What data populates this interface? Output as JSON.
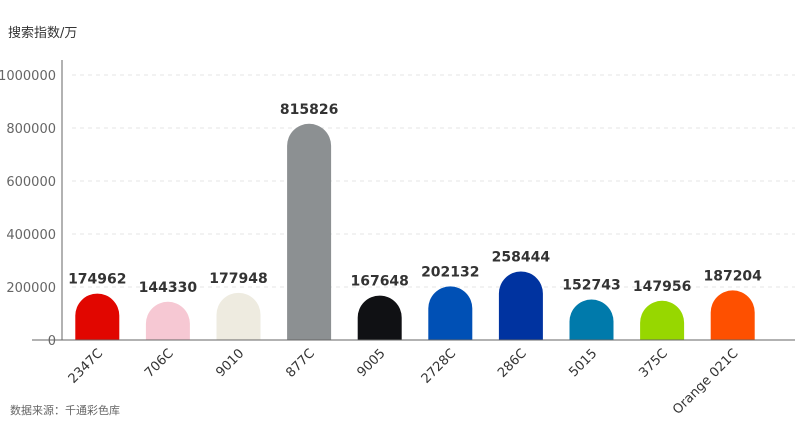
{
  "chart_data": {
    "type": "bar",
    "title": "",
    "ylabel": "搜索指数/万",
    "xlabel": "",
    "ylim": [
      0,
      1000000
    ],
    "yticks": [
      0,
      200000,
      400000,
      600000,
      800000,
      1000000
    ],
    "grid": true,
    "categories": [
      "2347C",
      "706C",
      "9010",
      "877C",
      "9005",
      "2728C",
      "286C",
      "5015",
      "375C",
      "Orange 021C"
    ],
    "values": [
      174962,
      144330,
      177948,
      815826,
      167648,
      202132,
      258444,
      152743,
      147956,
      187204
    ],
    "colors": [
      "#e10600",
      "#f6c8d3",
      "#eeebe0",
      "#8c9092",
      "#101114",
      "#0050b5",
      "#0033a0",
      "#007aab",
      "#97d700",
      "#fe5000"
    ]
  },
  "source": "数据来源：千通彩色库"
}
